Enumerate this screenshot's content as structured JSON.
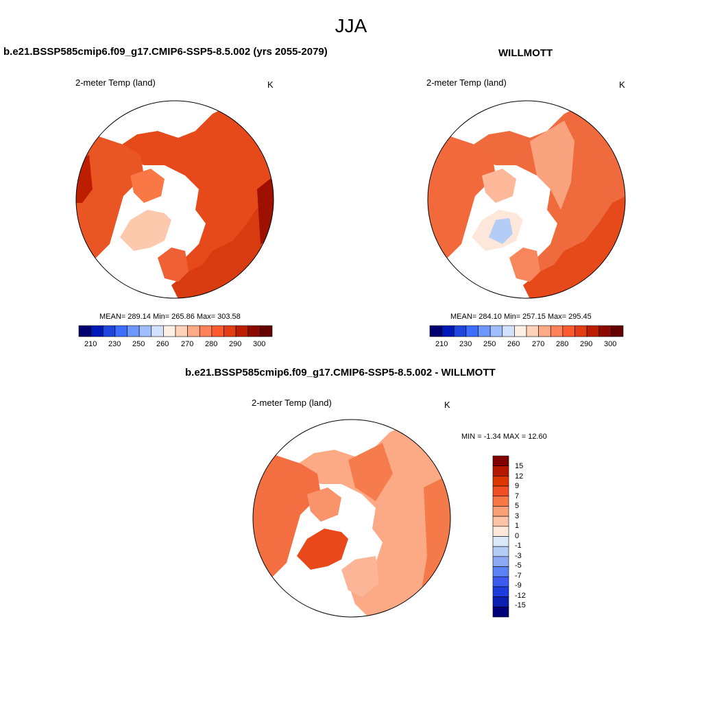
{
  "figure": {
    "title": "JJA"
  },
  "panels": [
    {
      "id": "left",
      "title": "b.e21.BSSP585cmip6.f09_g17.CMIP6-SSP5-8.5.002 (yrs 2055-2079)",
      "variable": "2-meter Temp (land)",
      "units": "K",
      "stats": "MEAN= 289.14  Min= 265.86  Max= 303.58",
      "colorbar_ticks": [
        "210",
        "230",
        "250",
        "260",
        "270",
        "280",
        "290",
        "300"
      ]
    },
    {
      "id": "right",
      "title": "WILLMOTT",
      "variable": "2-meter Temp (land)",
      "units": "K",
      "stats": "MEAN= 284.10  Min= 257.15  Max= 295.45",
      "colorbar_ticks": [
        "210",
        "230",
        "250",
        "260",
        "270",
        "280",
        "290",
        "300"
      ]
    },
    {
      "id": "diff",
      "title": "b.e21.BSSP585cmip6.f09_g17.CMIP6-SSP5-8.5.002 - WILLMOTT",
      "variable": "2-meter Temp (land)",
      "units": "K",
      "stats": "MIN =  -1.34 MAX =  12.60",
      "colorbar_ticks": [
        "15",
        "12",
        "9",
        "7",
        "5",
        "3",
        "1",
        "0",
        "-1",
        "-3",
        "-5",
        "-7",
        "-9",
        "-12",
        "-15"
      ]
    }
  ],
  "palettes": {
    "absolute": [
      "#00006e",
      "#0019b4",
      "#1e46dc",
      "#3c6efa",
      "#6e96ff",
      "#a0beff",
      "#d2e1ff",
      "#fff0e6",
      "#ffd2b9",
      "#ffaa87",
      "#ff825a",
      "#fa5a2d",
      "#e13c14",
      "#be1e00",
      "#8c0a00",
      "#640000"
    ],
    "difference_top_to_bottom": [
      "#820000",
      "#b41900",
      "#dc3700",
      "#f05023",
      "#fa7846",
      "#fca078",
      "#fdc3a5",
      "#ffe9dc",
      "#dce9fb",
      "#b4cdf7",
      "#8ca9f5",
      "#5a82f5",
      "#3c5af0",
      "#1e3cdc",
      "#0a1eaf",
      "#000078"
    ]
  }
}
